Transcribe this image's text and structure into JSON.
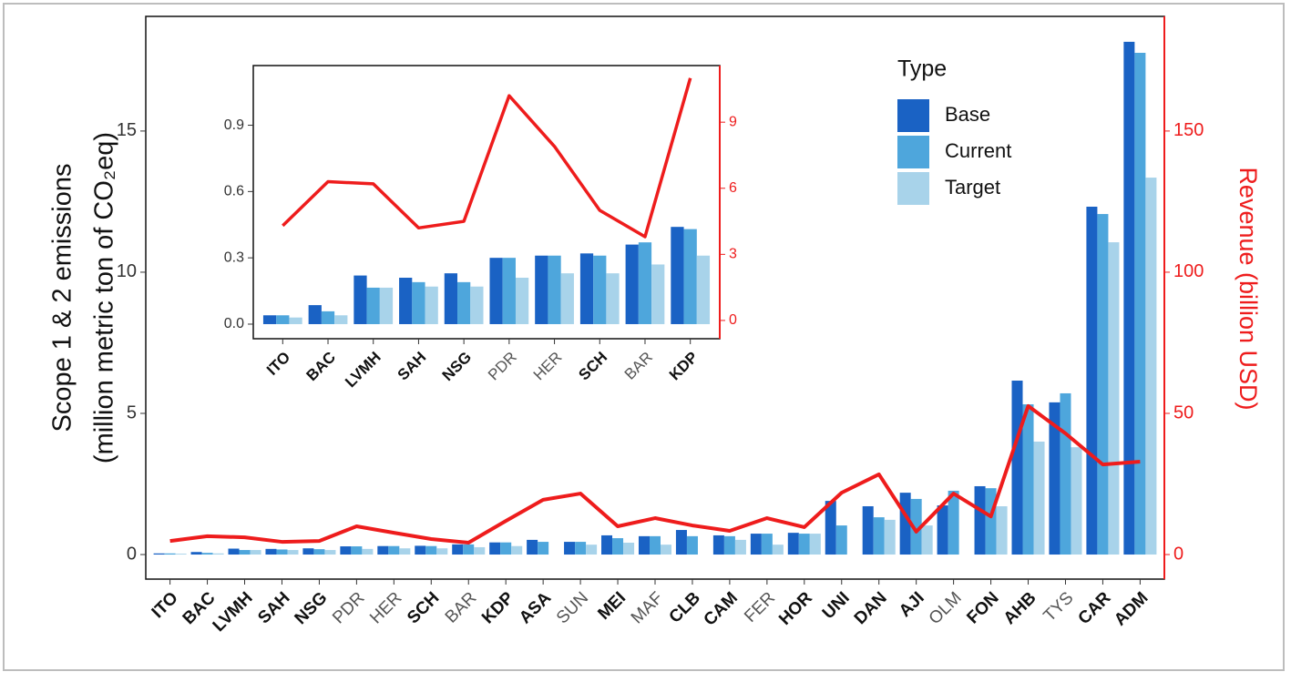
{
  "chart_data": [
    {
      "type": "bar",
      "ylabel": [
        "Scope 1 & 2 emissions",
        "(million metric ton of CO₂eq)"
      ],
      "y2label": "Revenue (billion USD)",
      "legend_title": "Type",
      "legend": "top-right",
      "categories": [
        "ITO",
        "BAC",
        "LVMH",
        "SAH",
        "NSG",
        "PDR",
        "HER",
        "SCH",
        "BAR",
        "KDP",
        "ASA",
        "SUN",
        "MEI",
        "MAF",
        "CLB",
        "CAM",
        "FER",
        "HOR",
        "UNI",
        "DAN",
        "AJI",
        "OLM",
        "FON",
        "AHB",
        "TYS",
        "CAR",
        "ADM"
      ],
      "bold": [
        true,
        true,
        true,
        true,
        true,
        false,
        false,
        true,
        false,
        true,
        true,
        false,
        true,
        false,
        true,
        true,
        false,
        true,
        true,
        true,
        true,
        false,
        true,
        true,
        false,
        true,
        true
      ],
      "series": [
        {
          "name": "Base",
          "color": "#1a62c4",
          "values": [
            0.04,
            0.09,
            0.21,
            0.2,
            0.22,
            0.29,
            0.3,
            0.31,
            0.36,
            0.43,
            0.52,
            0.45,
            0.68,
            0.65,
            0.87,
            0.68,
            0.74,
            0.77,
            1.9,
            1.71,
            2.19,
            1.74,
            2.42,
            6.16,
            5.39,
            12.32,
            18.16
          ]
        },
        {
          "name": "Current",
          "color": "#4ea6dc",
          "values": [
            0.04,
            0.06,
            0.16,
            0.18,
            0.19,
            0.29,
            0.3,
            0.3,
            0.36,
            0.43,
            0.45,
            0.45,
            0.58,
            0.65,
            0.65,
            0.65,
            0.74,
            0.74,
            1.03,
            1.32,
            1.97,
            2.26,
            2.35,
            5.32,
            5.71,
            12.06,
            17.77
          ]
        },
        {
          "name": "Target",
          "color": "#a8d3ea",
          "values": [
            0.03,
            0.04,
            0.16,
            0.16,
            0.16,
            0.2,
            0.22,
            0.22,
            0.26,
            0.3,
            null,
            0.35,
            0.42,
            0.35,
            null,
            0.52,
            0.35,
            0.74,
            null,
            1.23,
            1.03,
            null,
            1.71,
            4.0,
            3.8,
            11.06,
            13.35
          ]
        },
        {
          "name": "Revenue",
          "type": "line",
          "axis": "y2",
          "color": "#ee1c1c",
          "values": [
            4.8,
            6.5,
            6.1,
            4.5,
            4.8,
            10.0,
            7.7,
            5.5,
            4.2,
            11.9,
            19.4,
            21.6,
            10.0,
            12.9,
            10.3,
            8.4,
            12.9,
            9.7,
            21.9,
            28.4,
            8.1,
            21.6,
            13.5,
            52.6,
            42.9,
            31.9,
            32.9
          ]
        }
      ],
      "ylim": [
        -0.87,
        19.06
      ],
      "yticks": [
        0,
        5,
        10,
        15
      ],
      "y2lim": [
        -8.7,
        190.6
      ],
      "y2ticks": [
        0,
        50,
        100,
        150
      ]
    },
    {
      "type": "bar",
      "categories": [
        "ITO",
        "BAC",
        "LVMH",
        "SAH",
        "NSG",
        "PDR",
        "HER",
        "SCH",
        "BAR",
        "KDP"
      ],
      "bold": [
        true,
        true,
        true,
        true,
        true,
        false,
        false,
        true,
        false,
        true
      ],
      "series": [
        {
          "name": "Base",
          "color": "#1a62c4",
          "values": [
            0.04,
            0.086,
            0.22,
            0.21,
            0.23,
            0.3,
            0.31,
            0.32,
            0.36,
            0.44
          ]
        },
        {
          "name": "Current",
          "color": "#4ea6dc",
          "values": [
            0.04,
            0.058,
            0.165,
            0.19,
            0.19,
            0.3,
            0.31,
            0.31,
            0.37,
            0.43
          ]
        },
        {
          "name": "Target",
          "color": "#a8d3ea",
          "values": [
            0.03,
            0.04,
            0.165,
            0.17,
            0.17,
            0.21,
            0.23,
            0.23,
            0.27,
            0.31
          ]
        },
        {
          "name": "Revenue",
          "type": "line",
          "axis": "y2",
          "color": "#ee1c1c",
          "values": [
            4.3,
            6.3,
            6.2,
            4.2,
            4.5,
            10.2,
            7.9,
            5.0,
            3.8,
            11.0
          ]
        }
      ],
      "ylim": [
        -0.066,
        1.17
      ],
      "yticks": [
        {
          "value": 0,
          "label": "0.0"
        },
        0.3,
        0.6,
        0.9
      ],
      "y2lim": [
        -0.83,
        11.57
      ],
      "y2ticks": [
        0,
        3,
        6,
        9
      ]
    }
  ]
}
